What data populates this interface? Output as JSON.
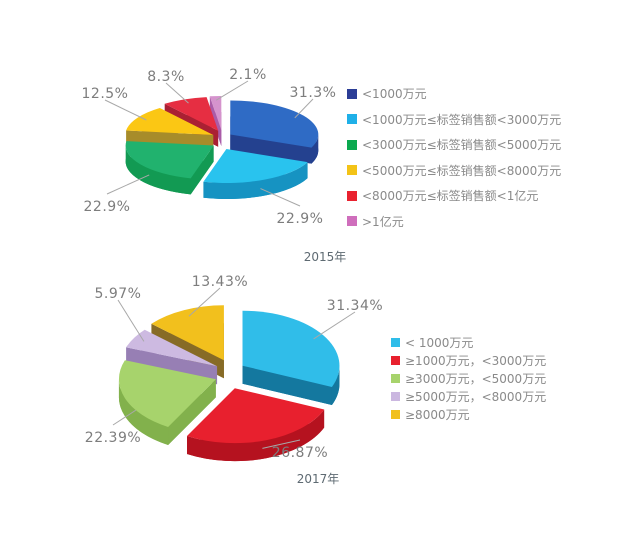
{
  "style": {
    "background": "#ffffff",
    "label_color": "#7d7d7d",
    "leader_color": "#a8a8a8",
    "title_color": "#5e6a72",
    "legend_text_color": "#8a8a8a"
  },
  "chart_data": [
    {
      "type": "pie",
      "title": "2015年",
      "legend_position": "right",
      "labels": [
        "<1000万元",
        "<1000万元≤标签销售额<3000万元",
        "<3000万元≤标签销售额<5000万元",
        "<5000万元≤标签销售额<8000万元",
        "<8000万元≤标签销售额<1亿元",
        ">1亿元"
      ],
      "values": [
        31.3,
        22.9,
        22.9,
        12.5,
        8.3,
        2.1
      ],
      "colors": [
        "#2f6bc5",
        "#29c3ee",
        "#21b26e",
        "#fbc714",
        "#e62e42",
        "#d593cd"
      ],
      "side_colors": [
        "#24418f",
        "#1693c2",
        "#129a53",
        "#a78c2a",
        "#aa2033",
        "#aa5ca8"
      ],
      "legend_colors": [
        "#2b3d96",
        "#1fb0e8",
        "#0ba94f",
        "#f3c317",
        "#e9222f",
        "#cf6ebc"
      ]
    },
    {
      "type": "pie",
      "title": "2017年",
      "legend_position": "right",
      "labels": [
        "< 1000万元",
        "≥1000万元，<3000万元",
        "≥3000万元，<5000万元",
        "≥5000万元，<8000万元",
        "≥8000万元"
      ],
      "values": [
        31.34,
        26.87,
        22.39,
        5.97,
        13.43
      ],
      "colors": [
        "#30bde9",
        "#e8202e",
        "#a7d36c",
        "#cdbae1",
        "#f2c01d"
      ],
      "side_colors": [
        "#14789f",
        "#b5121f",
        "#82b14c",
        "#977fb4",
        "#876b26"
      ],
      "legend_colors": [
        "#2fbde9",
        "#e8202e",
        "#a7d36c",
        "#cbb7e0",
        "#f1c01d"
      ]
    }
  ]
}
